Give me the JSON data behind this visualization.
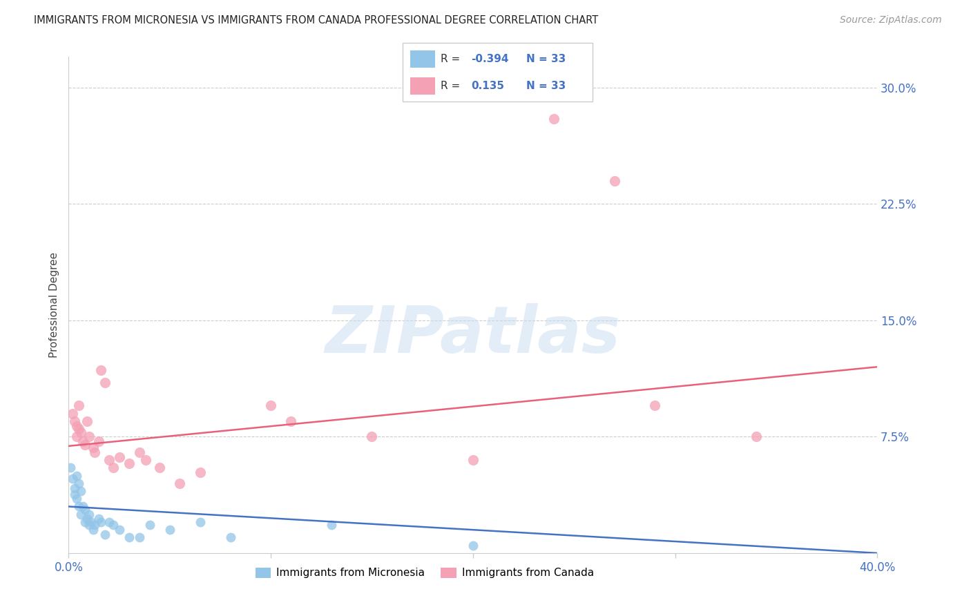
{
  "title": "IMMIGRANTS FROM MICRONESIA VS IMMIGRANTS FROM CANADA PROFESSIONAL DEGREE CORRELATION CHART",
  "source": "Source: ZipAtlas.com",
  "ylabel": "Professional Degree",
  "xlim": [
    0.0,
    0.4
  ],
  "ylim": [
    0.0,
    0.32
  ],
  "watermark": "ZIPatlas",
  "legend_r_micronesia": "-0.394",
  "legend_r_canada": "0.135",
  "legend_n": "33",
  "blue_color": "#92c5e8",
  "pink_color": "#f4a0b5",
  "blue_line_color": "#4472c4",
  "pink_line_color": "#e8607a",
  "blue_scatter": [
    [
      0.001,
      0.055
    ],
    [
      0.002,
      0.048
    ],
    [
      0.003,
      0.042
    ],
    [
      0.003,
      0.038
    ],
    [
      0.004,
      0.05
    ],
    [
      0.004,
      0.035
    ],
    [
      0.005,
      0.045
    ],
    [
      0.005,
      0.03
    ],
    [
      0.006,
      0.04
    ],
    [
      0.006,
      0.025
    ],
    [
      0.007,
      0.03
    ],
    [
      0.008,
      0.028
    ],
    [
      0.008,
      0.02
    ],
    [
      0.009,
      0.022
    ],
    [
      0.01,
      0.025
    ],
    [
      0.01,
      0.018
    ],
    [
      0.011,
      0.02
    ],
    [
      0.012,
      0.015
    ],
    [
      0.013,
      0.018
    ],
    [
      0.015,
      0.022
    ],
    [
      0.016,
      0.02
    ],
    [
      0.018,
      0.012
    ],
    [
      0.02,
      0.02
    ],
    [
      0.022,
      0.018
    ],
    [
      0.025,
      0.015
    ],
    [
      0.03,
      0.01
    ],
    [
      0.035,
      0.01
    ],
    [
      0.04,
      0.018
    ],
    [
      0.05,
      0.015
    ],
    [
      0.065,
      0.02
    ],
    [
      0.08,
      0.01
    ],
    [
      0.13,
      0.018
    ],
    [
      0.2,
      0.005
    ]
  ],
  "pink_scatter": [
    [
      0.002,
      0.09
    ],
    [
      0.003,
      0.085
    ],
    [
      0.004,
      0.082
    ],
    [
      0.004,
      0.075
    ],
    [
      0.005,
      0.095
    ],
    [
      0.005,
      0.08
    ],
    [
      0.006,
      0.078
    ],
    [
      0.007,
      0.072
    ],
    [
      0.008,
      0.07
    ],
    [
      0.009,
      0.085
    ],
    [
      0.01,
      0.075
    ],
    [
      0.012,
      0.068
    ],
    [
      0.013,
      0.065
    ],
    [
      0.015,
      0.072
    ],
    [
      0.016,
      0.118
    ],
    [
      0.018,
      0.11
    ],
    [
      0.02,
      0.06
    ],
    [
      0.022,
      0.055
    ],
    [
      0.025,
      0.062
    ],
    [
      0.03,
      0.058
    ],
    [
      0.035,
      0.065
    ],
    [
      0.038,
      0.06
    ],
    [
      0.045,
      0.055
    ],
    [
      0.055,
      0.045
    ],
    [
      0.065,
      0.052
    ],
    [
      0.1,
      0.095
    ],
    [
      0.11,
      0.085
    ],
    [
      0.15,
      0.075
    ],
    [
      0.2,
      0.06
    ],
    [
      0.24,
      0.28
    ],
    [
      0.27,
      0.24
    ],
    [
      0.29,
      0.095
    ],
    [
      0.34,
      0.075
    ]
  ],
  "blue_line_x": [
    0.0,
    0.4
  ],
  "blue_line_y": [
    0.03,
    0.0
  ],
  "pink_line_x": [
    0.0,
    0.4
  ],
  "pink_line_y": [
    0.069,
    0.12
  ]
}
